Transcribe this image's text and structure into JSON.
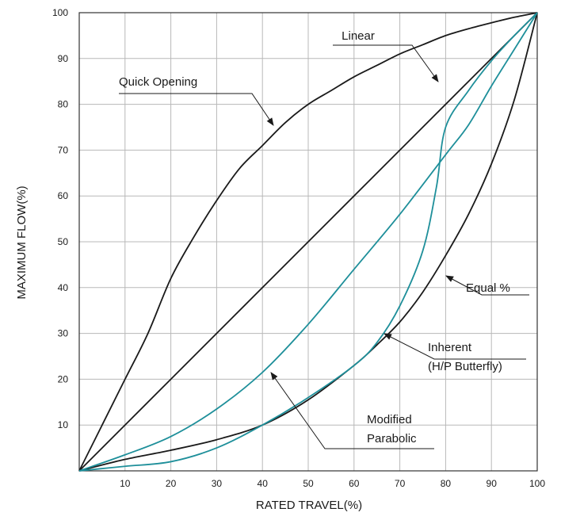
{
  "chart_data": {
    "type": "line",
    "title": "",
    "xlabel": "RATED TRAVEL(%)",
    "ylabel": "MAXIMUM FLOW(%)",
    "xlim": [
      0,
      100
    ],
    "ylim": [
      0,
      100
    ],
    "x_ticks": [
      10,
      20,
      30,
      40,
      50,
      60,
      70,
      80,
      90,
      100
    ],
    "y_ticks": [
      10,
      20,
      30,
      40,
      50,
      60,
      70,
      80,
      90,
      100
    ],
    "grid": true,
    "legend": "none",
    "series": [
      {
        "name": "Quick Opening",
        "color": "#1a1a1a",
        "points": [
          [
            0,
            0
          ],
          [
            5,
            10
          ],
          [
            10,
            20
          ],
          [
            15,
            30
          ],
          [
            20,
            42
          ],
          [
            25,
            51
          ],
          [
            30,
            59
          ],
          [
            35,
            66
          ],
          [
            40,
            71
          ],
          [
            45,
            76
          ],
          [
            50,
            80
          ],
          [
            55,
            83
          ],
          [
            60,
            86
          ],
          [
            65,
            88.5
          ],
          [
            70,
            91
          ],
          [
            75,
            93
          ],
          [
            80,
            95
          ],
          [
            85,
            96.5
          ],
          [
            90,
            97.8
          ],
          [
            95,
            99
          ],
          [
            100,
            100
          ]
        ]
      },
      {
        "name": "Linear",
        "color": "#1a1a1a",
        "points": [
          [
            0,
            0
          ],
          [
            100,
            100
          ]
        ]
      },
      {
        "name": "Equal %",
        "color": "#1a1a1a",
        "points": [
          [
            0,
            0
          ],
          [
            10,
            2.5
          ],
          [
            20,
            4.5
          ],
          [
            30,
            6.8
          ],
          [
            40,
            10
          ],
          [
            50,
            15.5
          ],
          [
            60,
            23
          ],
          [
            65,
            27.5
          ],
          [
            70,
            32.5
          ],
          [
            75,
            39
          ],
          [
            80,
            47
          ],
          [
            85,
            56
          ],
          [
            90,
            67
          ],
          [
            95,
            81
          ],
          [
            100,
            100
          ]
        ]
      },
      {
        "name": "Modified Parabolic",
        "color": "#1e8f9a",
        "points": [
          [
            0,
            0
          ],
          [
            10,
            3.5
          ],
          [
            20,
            7.5
          ],
          [
            30,
            13.5
          ],
          [
            40,
            21.5
          ],
          [
            50,
            32
          ],
          [
            60,
            44
          ],
          [
            70,
            56
          ],
          [
            80,
            69
          ],
          [
            85,
            75.5
          ],
          [
            90,
            84
          ],
          [
            95,
            92
          ],
          [
            100,
            100
          ]
        ]
      },
      {
        "name": "Inherent (H/P Butterfly)",
        "color": "#1e8f9a",
        "points": [
          [
            0,
            0
          ],
          [
            10,
            1
          ],
          [
            20,
            2
          ],
          [
            30,
            5
          ],
          [
            40,
            10
          ],
          [
            50,
            16
          ],
          [
            60,
            23
          ],
          [
            65,
            28
          ],
          [
            70,
            36
          ],
          [
            75,
            48
          ],
          [
            78,
            62
          ],
          [
            80,
            75
          ],
          [
            85,
            83
          ],
          [
            90,
            89.5
          ],
          [
            95,
            95
          ],
          [
            100,
            100
          ]
        ]
      }
    ],
    "annotations": [
      {
        "lines": [
          "Linear"
        ]
      },
      {
        "lines": [
          "Quick Opening"
        ]
      },
      {
        "lines": [
          "Equal %"
        ]
      },
      {
        "lines": [
          "Inherent",
          "(H/P Butterfly)"
        ]
      },
      {
        "lines": [
          "Modified",
          "Parabolic"
        ]
      }
    ]
  }
}
